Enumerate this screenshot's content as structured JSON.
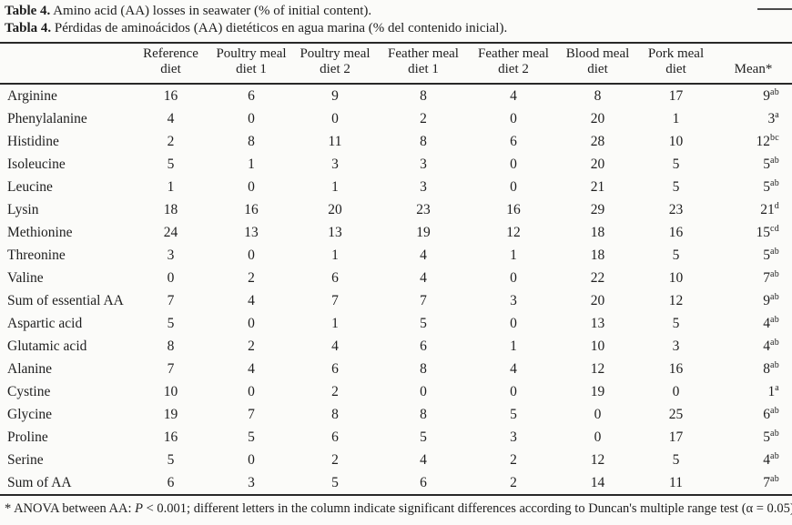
{
  "captions": {
    "en_label": "Table 4.",
    "en_text": " Amino acid (AA) losses in seawater (% of initial content).",
    "es_label": "Tabla 4.",
    "es_text": " Pérdidas de aminoácidos (AA) dietéticos en agua marina (% del contenido inicial)."
  },
  "table": {
    "columns": [
      {
        "line1": "",
        "line2": ""
      },
      {
        "line1": "Reference",
        "line2": "diet"
      },
      {
        "line1": "Poultry meal",
        "line2": "diet 1"
      },
      {
        "line1": "Poultry meal",
        "line2": "diet 2"
      },
      {
        "line1": "Feather meal",
        "line2": "diet 1"
      },
      {
        "line1": "Feather meal",
        "line2": "diet 2"
      },
      {
        "line1": "Blood meal",
        "line2": "diet"
      },
      {
        "line1": "Pork meal",
        "line2": "diet"
      },
      {
        "line1": "",
        "line2": "Mean*"
      }
    ],
    "rows": [
      {
        "label": "Arginine",
        "values": [
          "16",
          "6",
          "9",
          "8",
          "4",
          "8",
          "17"
        ],
        "mean": "9",
        "sup": "ab"
      },
      {
        "label": "Phenylalanine",
        "values": [
          "4",
          "0",
          "0",
          "2",
          "0",
          "20",
          "1"
        ],
        "mean": "3",
        "sup": "a"
      },
      {
        "label": "Histidine",
        "values": [
          "2",
          "8",
          "11",
          "8",
          "6",
          "28",
          "10"
        ],
        "mean": "12",
        "sup": "bc"
      },
      {
        "label": "Isoleucine",
        "values": [
          "5",
          "1",
          "3",
          "3",
          "0",
          "20",
          "5"
        ],
        "mean": "5",
        "sup": "ab"
      },
      {
        "label": "Leucine",
        "values": [
          "1",
          "0",
          "1",
          "3",
          "0",
          "21",
          "5"
        ],
        "mean": "5",
        "sup": "ab"
      },
      {
        "label": "Lysin",
        "values": [
          "18",
          "16",
          "20",
          "23",
          "16",
          "29",
          "23"
        ],
        "mean": "21",
        "sup": "d"
      },
      {
        "label": "Methionine",
        "values": [
          "24",
          "13",
          "13",
          "19",
          "12",
          "18",
          "16"
        ],
        "mean": "15",
        "sup": "cd"
      },
      {
        "label": "Threonine",
        "values": [
          "3",
          "0",
          "1",
          "4",
          "1",
          "18",
          "5"
        ],
        "mean": "5",
        "sup": "ab"
      },
      {
        "label": "Valine",
        "values": [
          "0",
          "2",
          "6",
          "4",
          "0",
          "22",
          "10"
        ],
        "mean": "7",
        "sup": "ab"
      },
      {
        "label": "Sum of essential AA",
        "values": [
          "7",
          "4",
          "7",
          "7",
          "3",
          "20",
          "12"
        ],
        "mean": "9",
        "sup": "ab"
      },
      {
        "label": "Aspartic acid",
        "values": [
          "5",
          "0",
          "1",
          "5",
          "0",
          "13",
          "5"
        ],
        "mean": "4",
        "sup": "ab"
      },
      {
        "label": "Glutamic acid",
        "values": [
          "8",
          "2",
          "4",
          "6",
          "1",
          "10",
          "3"
        ],
        "mean": "4",
        "sup": "ab"
      },
      {
        "label": "Alanine",
        "values": [
          "7",
          "4",
          "6",
          "8",
          "4",
          "12",
          "16"
        ],
        "mean": "8",
        "sup": "ab"
      },
      {
        "label": "Cystine",
        "values": [
          "10",
          "0",
          "2",
          "0",
          "0",
          "19",
          "0"
        ],
        "mean": "1",
        "sup": "a"
      },
      {
        "label": "Glycine",
        "values": [
          "19",
          "7",
          "8",
          "8",
          "5",
          "0",
          "25"
        ],
        "mean": "6",
        "sup": "ab"
      },
      {
        "label": "Proline",
        "values": [
          "16",
          "5",
          "6",
          "5",
          "3",
          "0",
          "17"
        ],
        "mean": "5",
        "sup": "ab"
      },
      {
        "label": "Serine",
        "values": [
          "5",
          "0",
          "2",
          "4",
          "2",
          "12",
          "5"
        ],
        "mean": "4",
        "sup": "ab"
      },
      {
        "label": "Sum of AA",
        "values": [
          "6",
          "3",
          "5",
          "6",
          "2",
          "14",
          "11"
        ],
        "mean": "7",
        "sup": "ab"
      }
    ]
  },
  "footnote": {
    "part1": "* ANOVA between AA: ",
    "p_italic": "P",
    "part2": " < 0.001; different letters in the column indicate significant differences according to Duncan's multiple range test (α = 0.05)."
  },
  "colors": {
    "page_background": "#fbfbf9",
    "text": "#1e1e1e",
    "rule": "#282828"
  }
}
